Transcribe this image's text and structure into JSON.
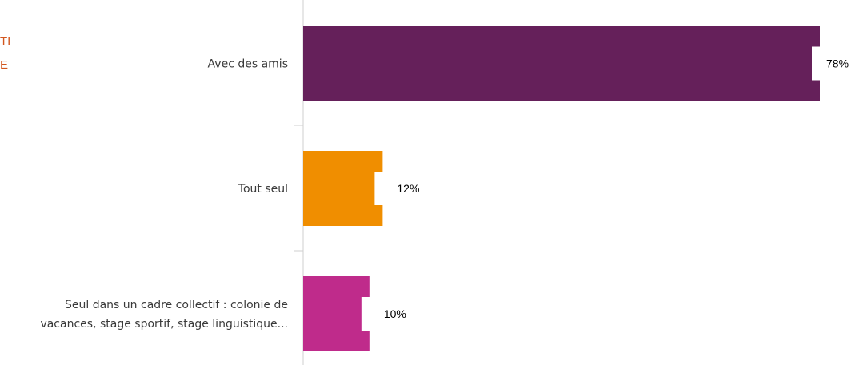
{
  "side_texts": [
    "TI",
    "E"
  ],
  "colors": {
    "side_text": "#d2561e",
    "axis": "#cfcfcf",
    "label_bg": "#ffffff"
  },
  "chart_data": {
    "type": "bar",
    "orientation": "horizontal",
    "categories": [
      "Avec des amis",
      "Tout seul",
      "Seul dans un cadre collectif : colonie de vacances, stage sportif, stage linguistique..."
    ],
    "category_lines": [
      [
        "Avec des amis"
      ],
      [
        "Tout seul"
      ],
      [
        "Seul dans un cadre collectif : colonie de",
        "vacances, stage sportif, stage linguistique..."
      ]
    ],
    "values": [
      78,
      12,
      10
    ],
    "value_labels": [
      "78%",
      "12%",
      "10%"
    ],
    "colors": [
      "#65205a",
      "#f08e00",
      "#bf2b8b"
    ],
    "xlim": [
      0,
      78
    ],
    "grid": false,
    "legend": "none"
  }
}
